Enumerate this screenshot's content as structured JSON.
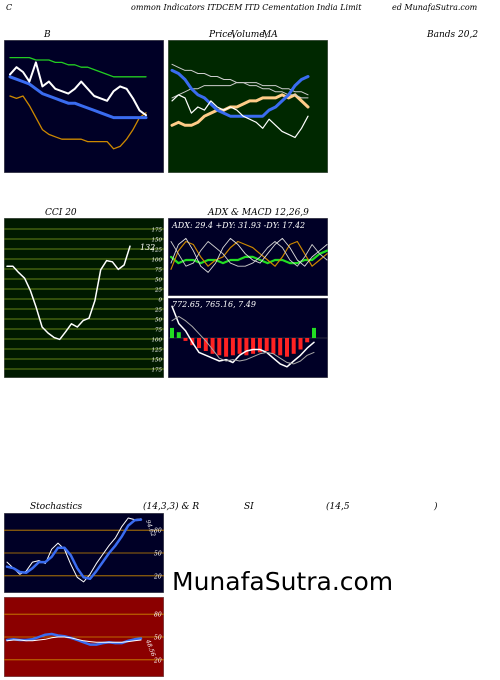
{
  "header": {
    "left": "C",
    "center": "ommon  Indicators ITDCEM ITD Cementation  India  Limit",
    "right": "ed MunafaSutra.com"
  },
  "captions": {
    "p1": "B",
    "p2a": "Price,",
    "p2b": "Volume,",
    "p2c": "MA",
    "p3": "Bands 20,2",
    "p4": "CCI 20",
    "p5": "ADX  & MACD 12,26,9",
    "stoch_a": "Stochastics",
    "stoch_b": "(14,3,3) & R",
    "stoch_c": "SI",
    "stoch_d": "(14,5",
    "stoch_e": ")"
  },
  "watermark": "MunafaSutra.com",
  "colors": {
    "navy": "#000026",
    "dark_green": "#002800",
    "dark_red": "#8b0000",
    "blue": "#3a6cf0",
    "green": "#22cc22",
    "orange": "#ff8c00",
    "gold": "#cc8800",
    "white": "#ffffff"
  },
  "chart_data": [
    {
      "type": "line",
      "panel": "bollinger",
      "series": [
        {
          "values": [
            80,
            79,
            80,
            76,
            71,
            66,
            64,
            63,
            62,
            62,
            62,
            62,
            61,
            61,
            61,
            61,
            58,
            59,
            62,
            66,
            71,
            73
          ]
        },
        {
          "values": [
            88,
            87,
            86,
            85,
            83,
            81,
            80,
            79,
            78,
            77,
            77,
            76,
            75,
            74,
            73,
            72,
            71,
            71,
            71,
            71,
            71,
            71
          ]
        },
        {
          "values": [
            96,
            96,
            96,
            96,
            95,
            95,
            95,
            94,
            94,
            93,
            93,
            92,
            92,
            91,
            90,
            89,
            88,
            88,
            88,
            88,
            88,
            88
          ]
        },
        {
          "values": [
            89,
            92,
            90,
            86,
            94,
            84,
            86,
            83,
            82,
            81,
            83,
            86,
            83,
            80,
            79,
            78,
            82,
            84,
            83,
            79,
            74,
            72
          ]
        }
      ]
    },
    {
      "type": "line",
      "panel": "price_volume_ma",
      "series": [
        {
          "values": [
            74,
            75,
            74,
            74,
            75,
            77,
            78,
            79,
            79,
            80,
            80,
            81,
            82,
            82,
            83,
            83,
            83,
            84,
            83,
            84,
            82,
            80
          ]
        },
        {
          "values": [
            83,
            84,
            85,
            86,
            86,
            87,
            87,
            87,
            87,
            87,
            88,
            88,
            88,
            88,
            87,
            87,
            87,
            86,
            86,
            85,
            85,
            84
          ]
        },
        {
          "values": [
            77,
            78,
            79,
            79,
            80,
            81,
            82,
            82,
            83,
            83,
            84,
            84,
            85,
            85,
            86,
            86,
            87,
            87,
            87,
            88,
            88,
            88
          ]
        },
        {
          "values": [
            94,
            93,
            92,
            92,
            91,
            91,
            90,
            90,
            89,
            89,
            88,
            88,
            87,
            87,
            86,
            86,
            85,
            85,
            84,
            84,
            83,
            83
          ]
        },
        {
          "values": [
            92,
            91,
            89,
            86,
            84,
            83,
            81,
            79,
            78,
            77,
            77,
            77,
            77,
            77,
            77,
            79,
            80,
            82,
            84,
            87,
            89,
            90
          ]
        },
        {
          "values": [
            82,
            84,
            83,
            78,
            80,
            79,
            82,
            80,
            79,
            80,
            79,
            77,
            76,
            75,
            73,
            76,
            74,
            72,
            71,
            70,
            73,
            77
          ]
        }
      ],
      "volume": [
        2,
        1,
        3,
        4,
        1,
        2,
        2,
        3,
        2,
        5,
        2,
        1,
        7,
        1,
        2,
        2,
        2,
        1,
        2,
        4,
        3,
        2
      ]
    },
    {
      "type": "line",
      "panel": "cci",
      "ylim": [
        -175,
        175
      ],
      "yticks": [
        175,
        150,
        125,
        100,
        75,
        50,
        25,
        0,
        -25,
        -50,
        -75,
        -100,
        -125,
        -150,
        -175
      ],
      "ytick_labels": [
        "175",
        "150",
        "125",
        "100",
        "75",
        "50",
        "25",
        "0",
        "25",
        "50",
        "75",
        "100",
        "125",
        "150",
        "175"
      ],
      "last_value_label": "132",
      "values": [
        82,
        82,
        66,
        52,
        21,
        -22,
        -70,
        -85,
        -96,
        -101,
        -82,
        -62,
        -70,
        -54,
        -48,
        -4,
        73,
        96,
        93,
        74,
        85,
        132
      ]
    },
    {
      "type": "line",
      "panel": "adx",
      "label": "ADX: 29.4  +DY: 31.93 -DY: 17.42",
      "series": [
        {
          "values": [
            32,
            30,
            31,
            31,
            30,
            31,
            31,
            30,
            31,
            31,
            32,
            32,
            31,
            30,
            31,
            31,
            30,
            30,
            31,
            31,
            33,
            34
          ]
        },
        {
          "values": [
            28,
            34,
            37,
            36,
            32,
            29,
            31,
            32,
            35,
            37,
            36,
            35,
            33,
            31,
            29,
            32,
            36,
            37,
            33,
            29,
            31,
            33
          ]
        },
        {
          "values": [
            37,
            33,
            29,
            30,
            34,
            37,
            35,
            33,
            30,
            29,
            29,
            30,
            32,
            35,
            37,
            35,
            31,
            29,
            32,
            36,
            33,
            31
          ]
        },
        {
          "values": [
            30,
            36,
            38,
            34,
            29,
            27,
            30,
            35,
            38,
            36,
            33,
            31,
            30,
            33,
            36,
            38,
            35,
            31,
            29,
            32,
            34,
            36
          ]
        }
      ]
    },
    {
      "type": "bar",
      "panel": "macd",
      "label": "772.65,  765.16,  7.49",
      "histogram": [
        7,
        4,
        -2,
        -5,
        -7,
        -9,
        -11,
        -12,
        -13,
        -12,
        -11,
        -12,
        -11,
        -10,
        -9,
        -11,
        -12,
        -13,
        -11,
        -8,
        -3,
        7
      ],
      "series": [
        {
          "values": [
            22,
            10,
            5,
            -3,
            -10,
            -12,
            -14,
            -16,
            -15,
            -17,
            -12,
            -9,
            -8,
            -8,
            -10,
            -14,
            -18,
            -20,
            -16,
            -12,
            -7,
            -3
          ]
        },
        {
          "values": [
            12,
            15,
            12,
            8,
            3,
            -2,
            -8,
            -14,
            -16,
            -15,
            -16,
            -15,
            -13,
            -11,
            -10,
            -11,
            -14,
            -17,
            -18,
            -16,
            -12,
            -10
          ]
        }
      ]
    },
    {
      "type": "line",
      "panel": "stochastics",
      "ylim": [
        0,
        100
      ],
      "yticks": [
        80,
        50,
        20
      ],
      "last_value_label": "94.62",
      "series": [
        {
          "values": [
            38,
            30,
            22,
            26,
            38,
            40,
            36,
            55,
            63,
            55,
            35,
            18,
            12,
            22,
            36,
            48,
            60,
            70,
            85,
            96,
            94,
            95
          ]
        },
        {
          "values": [
            32,
            30,
            25,
            24,
            30,
            38,
            38,
            45,
            57,
            57,
            47,
            30,
            18,
            16,
            26,
            38,
            50,
            60,
            72,
            86,
            93,
            94
          ]
        }
      ]
    },
    {
      "type": "line",
      "panel": "rsi",
      "ylim": [
        0,
        100
      ],
      "yticks": [
        80,
        50,
        20
      ],
      "last_value_label": "48.56",
      "series": [
        {
          "values": [
            46,
            47,
            46,
            46,
            47,
            50,
            53,
            54,
            52,
            51,
            49,
            46,
            43,
            40,
            40,
            42,
            43,
            42,
            42,
            45,
            47,
            48
          ]
        },
        {
          "values": [
            45,
            46,
            46,
            45,
            45,
            46,
            47,
            49,
            50,
            50,
            49,
            47,
            45,
            44,
            43,
            43,
            43,
            43,
            43,
            44,
            45,
            46
          ]
        }
      ]
    }
  ]
}
